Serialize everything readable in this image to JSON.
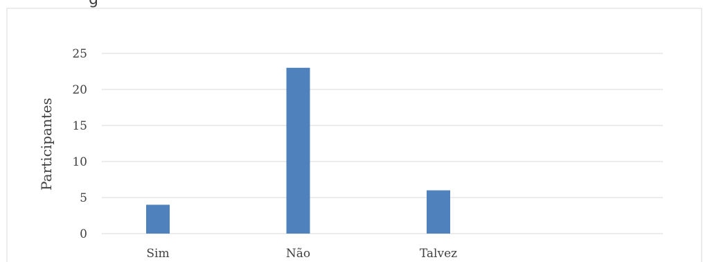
{
  "header_fragment": "g",
  "chart_data": {
    "type": "bar",
    "categories": [
      "Sim",
      "Não",
      "Talvez",
      ""
    ],
    "values": [
      4,
      23,
      6,
      null
    ],
    "title": "",
    "xlabel": "",
    "ylabel": "Participantes",
    "ylim": [
      0,
      25
    ],
    "yticks": [
      0,
      5,
      10,
      15,
      20,
      25
    ],
    "grid": true,
    "legend": "none",
    "colors": {
      "bar": "#4f81bd",
      "grid": "#d9d9d9",
      "frame": "#d9d9d9",
      "text": "#404040"
    }
  }
}
